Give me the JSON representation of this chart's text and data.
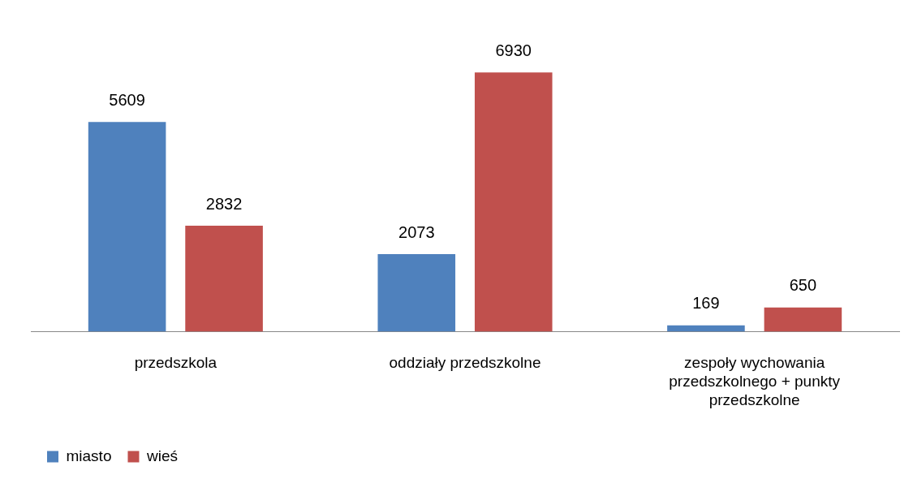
{
  "chart_data": {
    "type": "bar",
    "categories": [
      "przedszkola",
      "oddziały przedszkolne",
      "zespoły wychowania przedszkolnego + punkty przedszkolne"
    ],
    "series": [
      {
        "name": "miasto",
        "color": "#4f81bd",
        "values": [
          5609,
          2073,
          169
        ]
      },
      {
        "name": "wieś",
        "color": "#c0504d",
        "values": [
          2832,
          6930,
          650
        ]
      }
    ],
    "tick_labels": "x",
    "data_labels": true,
    "legend": "bottom left",
    "grid": false
  }
}
